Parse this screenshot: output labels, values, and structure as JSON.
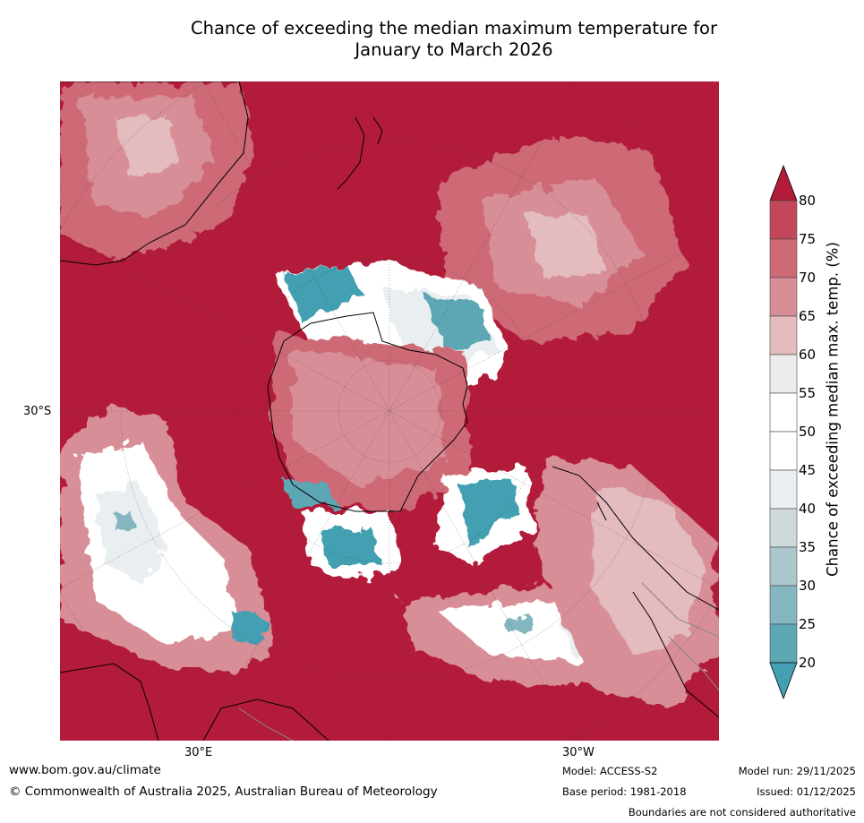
{
  "title": {
    "line1": "Chance of exceeding the median maximum temperature for",
    "line2": "January to March 2026"
  },
  "map": {
    "axis_labels": {
      "lat": "30°S",
      "lon_east": "30°E",
      "lon_west": "30°W"
    },
    "projection": "polar (south pole centred)",
    "colors": {
      "ocean_fill": "#b31b3a",
      "coastline": "#000000",
      "borders": "#888888"
    }
  },
  "colorbar": {
    "label": "Chance of exceeding median max. temp. (%)",
    "ticks": [
      "80",
      "75",
      "70",
      "65",
      "60",
      "55",
      "50",
      "45",
      "40",
      "35",
      "30",
      "25",
      "20"
    ],
    "colors": [
      "#b31b3a",
      "#c3475a",
      "#cd6a76",
      "#d88e96",
      "#e4bbbe",
      "#ececec",
      "#ffffff",
      "#ffffff",
      "#e9eef0",
      "#cfd8db",
      "#abc7cc",
      "#84b6c0",
      "#5da6b3",
      "#43a0b2"
    ]
  },
  "footer": {
    "url": "www.bom.gov.au/climate",
    "copyright": "© Commonwealth of Australia 2025, Australian Bureau of Meteorology",
    "model": "Model: ACCESS-S2",
    "base_period": "Base period: 1981-2018",
    "model_run": "Model run: 29/11/2025",
    "issued": "Issued: 01/12/2025",
    "disclaimer": "Boundaries are not considered authoritative"
  }
}
